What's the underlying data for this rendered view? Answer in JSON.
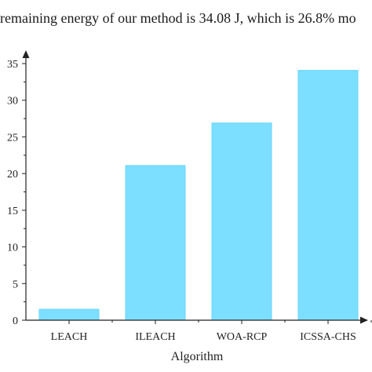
{
  "caption": {
    "text": "remaining energy of our method is 34.08 J, which is 26.8% mo"
  },
  "chart_data": {
    "type": "bar",
    "title": "",
    "xlabel": "Algorithm",
    "ylabel": "",
    "categories": [
      "LEACH",
      "ILEACH",
      "WOA-RCP",
      "ICSSA-CHS"
    ],
    "values": [
      1.5,
      21.1,
      26.9,
      34.08
    ],
    "ylim": [
      0,
      35
    ],
    "yticks": [
      0,
      5,
      10,
      15,
      20,
      25,
      30,
      35
    ],
    "bar_color": "#7ddfff",
    "bar_edge_color": "#6ad6ff",
    "grid": false,
    "legend": "none"
  }
}
